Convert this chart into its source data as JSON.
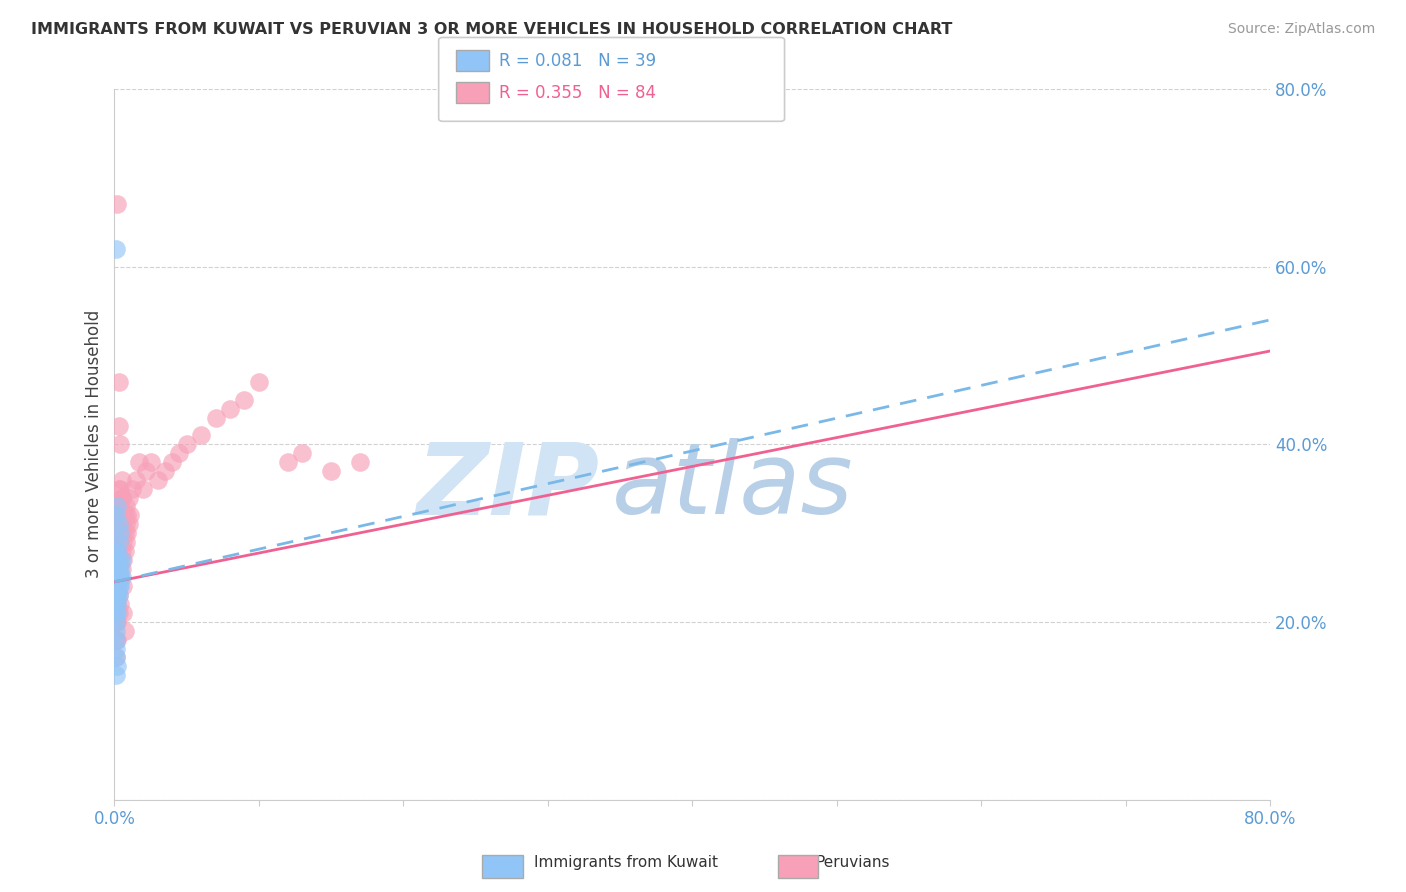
{
  "title": "IMMIGRANTS FROM KUWAIT VS PERUVIAN 3 OR MORE VEHICLES IN HOUSEHOLD CORRELATION CHART",
  "source": "Source: ZipAtlas.com",
  "ylabel": "3 or more Vehicles in Household",
  "legend_label1": "Immigrants from Kuwait",
  "legend_label2": "Peruvians",
  "r1": "0.081",
  "n1": "39",
  "r2": "0.355",
  "n2": "84",
  "color1": "#92c5f7",
  "color2": "#f7a0b8",
  "line1_color": "#7ab8e8",
  "line2_color": "#f06090",
  "watermark_big": "ZIP",
  "watermark_small": "atlas",
  "watermark_color_big": "#d0e4f5",
  "watermark_color_small": "#b8cfe8",
  "xlim": [
    0.0,
    0.8
  ],
  "ylim": [
    0.0,
    0.8
  ],
  "scatter1_x": [
    0.001,
    0.001,
    0.001,
    0.001,
    0.001,
    0.001,
    0.001,
    0.001,
    0.001,
    0.001,
    0.002,
    0.002,
    0.002,
    0.002,
    0.002,
    0.002,
    0.002,
    0.002,
    0.003,
    0.003,
    0.003,
    0.003,
    0.003,
    0.003,
    0.004,
    0.004,
    0.004,
    0.004,
    0.005,
    0.005,
    0.001,
    0.002,
    0.003,
    0.001,
    0.002,
    0.001,
    0.001,
    0.001,
    0.001
  ],
  "scatter1_y": [
    0.24,
    0.25,
    0.26,
    0.27,
    0.23,
    0.22,
    0.21,
    0.2,
    0.19,
    0.28,
    0.24,
    0.25,
    0.26,
    0.27,
    0.23,
    0.22,
    0.21,
    0.28,
    0.24,
    0.25,
    0.26,
    0.27,
    0.23,
    0.29,
    0.24,
    0.25,
    0.26,
    0.3,
    0.25,
    0.27,
    0.32,
    0.33,
    0.31,
    0.62,
    0.15,
    0.18,
    0.17,
    0.16,
    0.14
  ],
  "scatter2_x": [
    0.001,
    0.001,
    0.001,
    0.001,
    0.001,
    0.001,
    0.001,
    0.001,
    0.001,
    0.001,
    0.002,
    0.002,
    0.002,
    0.002,
    0.002,
    0.002,
    0.002,
    0.002,
    0.002,
    0.002,
    0.003,
    0.003,
    0.003,
    0.003,
    0.003,
    0.003,
    0.003,
    0.003,
    0.004,
    0.004,
    0.004,
    0.004,
    0.004,
    0.004,
    0.005,
    0.005,
    0.005,
    0.005,
    0.005,
    0.006,
    0.006,
    0.006,
    0.006,
    0.007,
    0.007,
    0.007,
    0.008,
    0.008,
    0.008,
    0.009,
    0.009,
    0.01,
    0.01,
    0.011,
    0.012,
    0.015,
    0.017,
    0.02,
    0.022,
    0.025,
    0.03,
    0.035,
    0.04,
    0.045,
    0.05,
    0.06,
    0.07,
    0.08,
    0.09,
    0.1,
    0.12,
    0.13,
    0.15,
    0.17,
    0.003,
    0.004,
    0.004,
    0.005,
    0.005,
    0.002,
    0.003,
    0.006,
    0.007
  ],
  "scatter2_y": [
    0.22,
    0.25,
    0.27,
    0.29,
    0.31,
    0.32,
    0.2,
    0.18,
    0.16,
    0.24,
    0.24,
    0.26,
    0.28,
    0.3,
    0.32,
    0.22,
    0.2,
    0.18,
    0.27,
    0.23,
    0.25,
    0.27,
    0.29,
    0.31,
    0.33,
    0.35,
    0.23,
    0.21,
    0.25,
    0.27,
    0.29,
    0.31,
    0.33,
    0.22,
    0.26,
    0.28,
    0.3,
    0.32,
    0.34,
    0.27,
    0.29,
    0.31,
    0.24,
    0.28,
    0.3,
    0.32,
    0.29,
    0.31,
    0.33,
    0.3,
    0.32,
    0.31,
    0.34,
    0.32,
    0.35,
    0.36,
    0.38,
    0.35,
    0.37,
    0.38,
    0.36,
    0.37,
    0.38,
    0.39,
    0.4,
    0.41,
    0.43,
    0.44,
    0.45,
    0.47,
    0.38,
    0.39,
    0.37,
    0.38,
    0.42,
    0.4,
    0.35,
    0.36,
    0.34,
    0.67,
    0.47,
    0.21,
    0.19
  ],
  "trendline1_x": [
    0.0,
    0.8
  ],
  "trendline1_y": [
    0.245,
    0.54
  ],
  "trendline2_x": [
    0.0,
    0.8
  ],
  "trendline2_y": [
    0.245,
    0.505
  ]
}
